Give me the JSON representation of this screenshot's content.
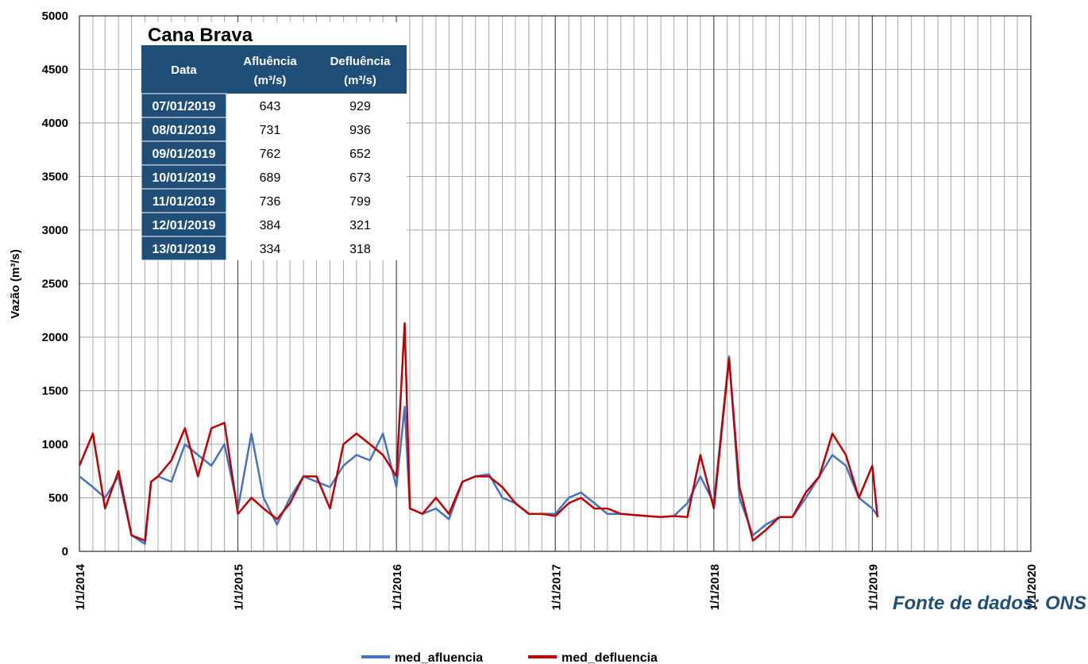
{
  "chart_data": {
    "type": "line",
    "y_label": "Vazão (m³/s)",
    "source": "Fonte de dados: ONS",
    "grid": true,
    "xlim": [
      "2014-01-01",
      "2020-01-01"
    ],
    "xticks": [
      {
        "value": "2014-01-01",
        "label": "1/1/2014"
      },
      {
        "value": "2015-01-01",
        "label": "1/1/2015"
      },
      {
        "value": "2016-01-01",
        "label": "1/1/2016"
      },
      {
        "value": "2017-01-01",
        "label": "1/1/2017"
      },
      {
        "value": "2018-01-01",
        "label": "1/1/2018"
      },
      {
        "value": "2019-01-01",
        "label": "1/1/2019"
      },
      {
        "value": "2020-01-01",
        "label": "1/1/2020"
      }
    ],
    "ylim": [
      0,
      5000
    ],
    "yticks": [
      0,
      500,
      1000,
      1500,
      2000,
      2500,
      3000,
      3500,
      4000,
      4500,
      5000
    ],
    "x": [
      "2014-01-01",
      "2014-02-01",
      "2014-03-01",
      "2014-04-01",
      "2014-05-01",
      "2014-06-01",
      "2014-06-15",
      "2014-07-01",
      "2014-08-01",
      "2014-09-01",
      "2014-10-01",
      "2014-11-01",
      "2014-12-01",
      "2015-01-01",
      "2015-02-01",
      "2015-03-01",
      "2015-04-01",
      "2015-05-01",
      "2015-06-01",
      "2015-07-01",
      "2015-08-01",
      "2015-09-01",
      "2015-10-01",
      "2015-11-01",
      "2015-12-01",
      "2016-01-01",
      "2016-01-20",
      "2016-02-01",
      "2016-03-01",
      "2016-04-01",
      "2016-05-01",
      "2016-06-01",
      "2016-07-01",
      "2016-08-01",
      "2016-09-01",
      "2016-10-01",
      "2016-11-01",
      "2016-12-01",
      "2017-01-01",
      "2017-02-01",
      "2017-03-01",
      "2017-04-01",
      "2017-05-01",
      "2017-06-01",
      "2017-07-01",
      "2017-08-01",
      "2017-09-01",
      "2017-10-01",
      "2017-11-01",
      "2017-12-01",
      "2018-01-01",
      "2018-02-05",
      "2018-03-01",
      "2018-04-01",
      "2018-05-01",
      "2018-06-01",
      "2018-07-01",
      "2018-08-01",
      "2018-09-01",
      "2018-10-01",
      "2018-11-01",
      "2018-12-01",
      "2019-01-01",
      "2019-01-13"
    ],
    "series": [
      {
        "name": "med_afluencia",
        "color": "#4472c4",
        "values": [
          700,
          600,
          500,
          700,
          150,
          70,
          650,
          700,
          650,
          1000,
          900,
          800,
          1000,
          400,
          1100,
          500,
          250,
          500,
          700,
          650,
          600,
          800,
          900,
          850,
          1100,
          600,
          1350,
          400,
          350,
          400,
          300,
          650,
          700,
          720,
          500,
          450,
          350,
          350,
          350,
          500,
          550,
          450,
          350,
          350,
          340,
          330,
          320,
          330,
          450,
          700,
          450,
          1820,
          500,
          150,
          250,
          320,
          320,
          500,
          700,
          900,
          800,
          500,
          400,
          334
        ]
      },
      {
        "name": "med_defluencia",
        "color": "#c00000",
        "values": [
          800,
          1100,
          400,
          750,
          150,
          100,
          650,
          700,
          850,
          1150,
          700,
          1150,
          1200,
          350,
          500,
          400,
          300,
          450,
          700,
          700,
          400,
          1000,
          1100,
          1000,
          900,
          700,
          2130,
          400,
          350,
          500,
          350,
          650,
          700,
          700,
          600,
          450,
          350,
          350,
          330,
          450,
          500,
          400,
          400,
          350,
          340,
          330,
          320,
          330,
          320,
          900,
          400,
          1800,
          600,
          100,
          200,
          320,
          320,
          550,
          700,
          1100,
          900,
          500,
          800,
          318
        ]
      }
    ]
  },
  "table": {
    "title": "Cana Brava",
    "header": [
      [
        "Data"
      ],
      [
        "Afluência",
        "(m³/s)"
      ],
      [
        "Defluência",
        "(m³/s)"
      ]
    ],
    "rows": [
      [
        "07/01/2019",
        643,
        929
      ],
      [
        "08/01/2019",
        731,
        936
      ],
      [
        "09/01/2019",
        762,
        652
      ],
      [
        "10/01/2019",
        689,
        673
      ],
      [
        "11/01/2019",
        736,
        799
      ],
      [
        "12/01/2019",
        384,
        321
      ],
      [
        "13/01/2019",
        334,
        318
      ]
    ]
  }
}
